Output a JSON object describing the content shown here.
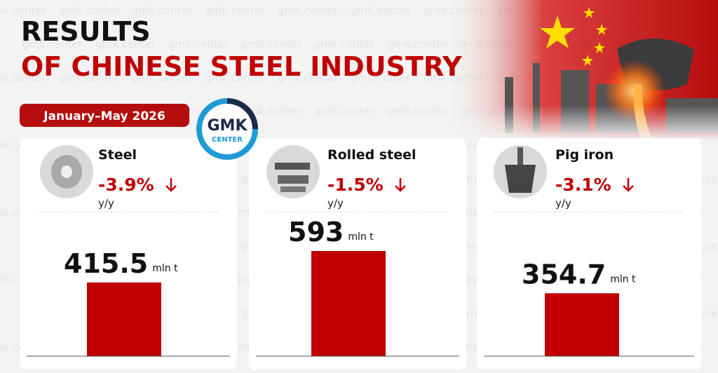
{
  "chart_data": {
    "type": "bar",
    "title": "RESULTS",
    "title_line2": "OF CHINESE STEEL INDUSTRY",
    "subtitle": "January–May 2026",
    "logo": [
      "GMK",
      "CENTER"
    ],
    "watermark": "gmk.center",
    "categories": [
      "Steel",
      "Rolled steel",
      "Pig iron"
    ],
    "values": [
      415.5,
      593,
      354.7
    ],
    "unit": "mln t",
    "color": "#c00000",
    "change": {
      "values": [
        -3.9,
        -1.5,
        -3.1
      ],
      "value_labels": [
        "-3.9%",
        "-1.5%",
        "-3.1%"
      ],
      "label": "y/y"
    }
  }
}
